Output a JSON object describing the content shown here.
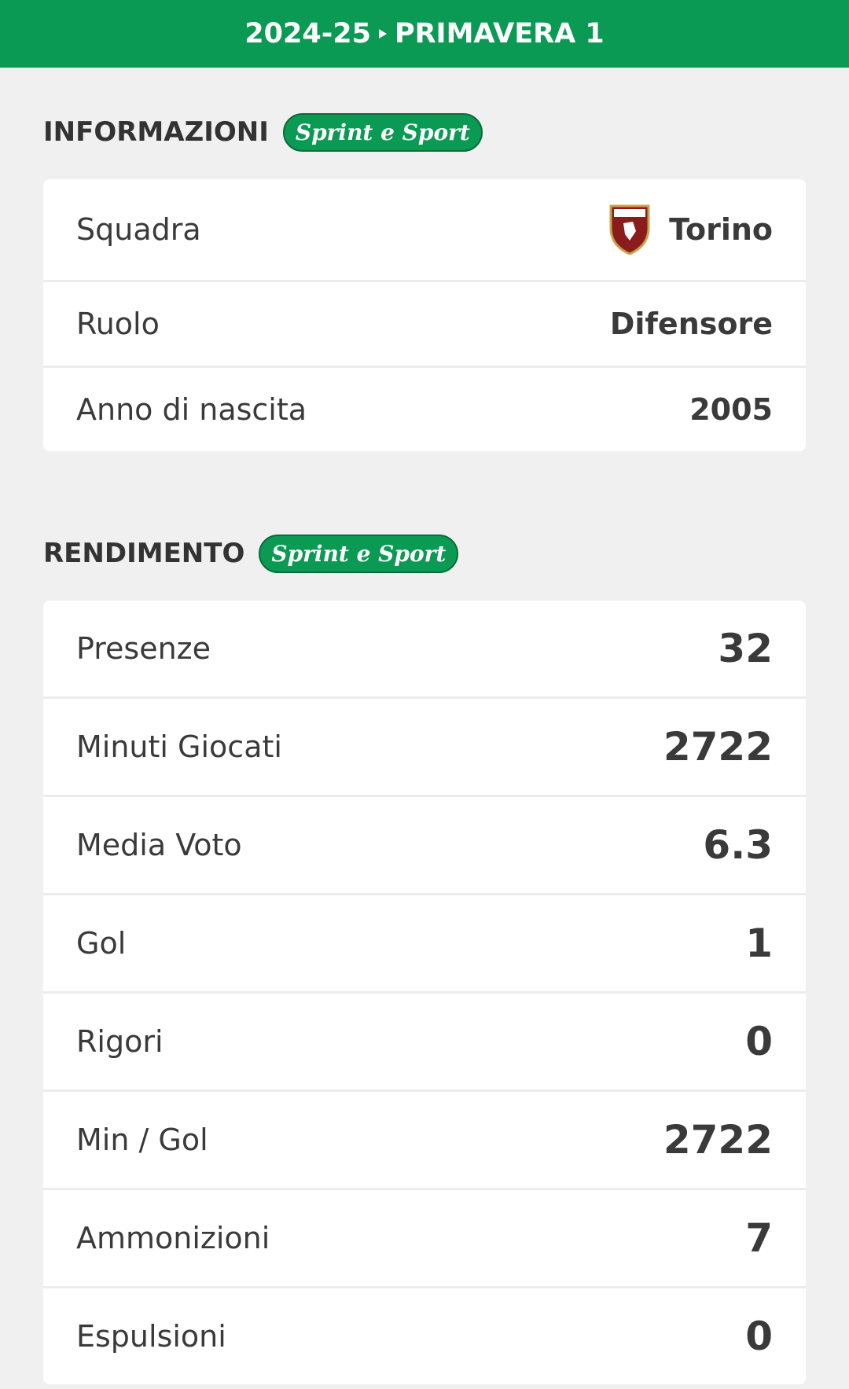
{
  "header": {
    "season": "2024-25",
    "competition": "PRIMAVERA 1"
  },
  "sections": [
    {
      "title": "INFORMAZIONI",
      "brand": "Sprint e Sport",
      "rows": [
        {
          "label": "Squadra",
          "value": "Torino"
        },
        {
          "label": "Ruolo",
          "value": "Difensore"
        },
        {
          "label": "Anno di nascita",
          "value": 2005
        }
      ]
    },
    {
      "title": "RENDIMENTO",
      "brand": "Sprint e Sport",
      "rows": [
        {
          "label": "Presenze",
          "value": 32
        },
        {
          "label": "Minuti Giocati",
          "value": 2722
        },
        {
          "label": "Media Voto",
          "value": 6.3
        },
        {
          "label": "Gol",
          "value": 1
        },
        {
          "label": "Rigori",
          "value": 0
        },
        {
          "label": "Min / Gol",
          "value": 2722
        },
        {
          "label": "Ammonizioni",
          "value": 7
        },
        {
          "label": "Espulsioni",
          "value": 0
        }
      ]
    }
  ]
}
